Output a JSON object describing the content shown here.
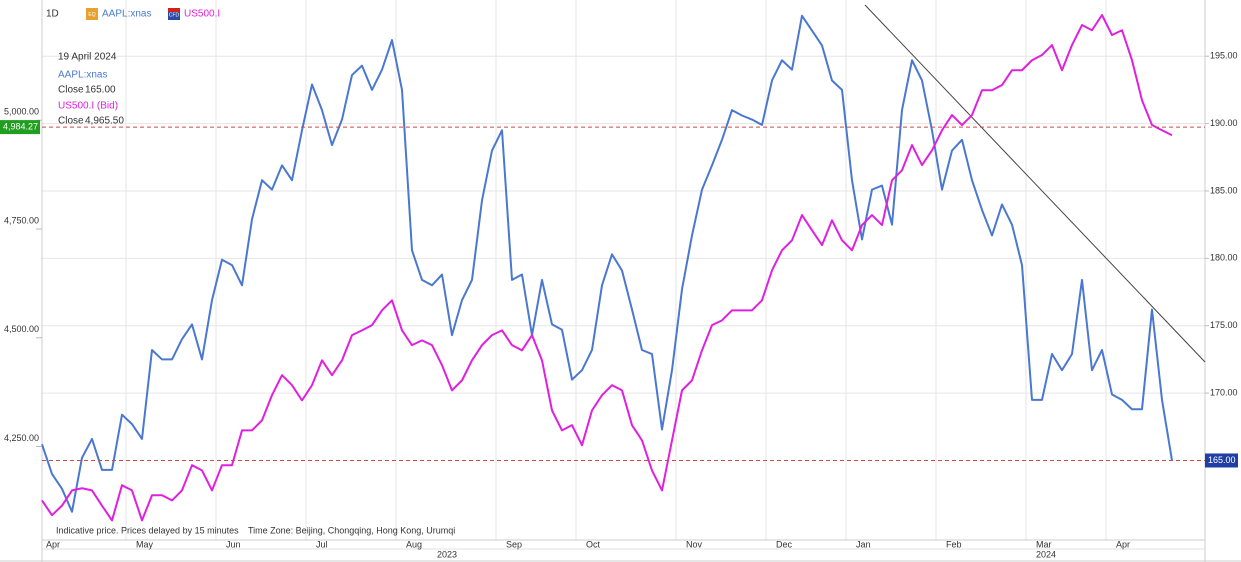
{
  "chart_data": {
    "type": "line",
    "timeframe": "1D",
    "categories": [
      "Apr",
      null,
      null,
      null,
      null,
      null,
      null,
      null,
      null,
      "May",
      null,
      null,
      null,
      null,
      null,
      null,
      null,
      null,
      "Jun",
      null,
      null,
      null,
      null,
      null,
      null,
      null,
      null,
      "Jul",
      null,
      null,
      null,
      null,
      null,
      null,
      null,
      null,
      "Aug",
      null,
      null,
      null,
      null,
      null,
      null,
      null,
      null,
      null,
      "Sep",
      null,
      null,
      null,
      null,
      null,
      null,
      null,
      "Oct",
      null,
      null,
      null,
      null,
      null,
      null,
      null,
      null,
      null,
      "Nov",
      null,
      null,
      null,
      null,
      null,
      null,
      null,
      null,
      "Dec",
      null,
      null,
      null,
      null,
      null,
      null,
      null,
      "Jan",
      null,
      null,
      null,
      null,
      null,
      null,
      null,
      null,
      "Feb",
      null,
      null,
      null,
      null,
      null,
      null,
      null,
      null,
      "Mar",
      null,
      null,
      null,
      null,
      null,
      null,
      null,
      "Apr",
      null,
      null,
      null,
      null,
      null,
      null
    ],
    "years": [
      "2023",
      "2024"
    ],
    "series": [
      {
        "name": "AAPL:xnas",
        "badge": "EQ",
        "color": "#4a78d0",
        "axis": "y2",
        "values": [
          166.2,
          164.0,
          162.9,
          161.2,
          165.2,
          166.6,
          164.3,
          164.3,
          168.4,
          167.7,
          166.6,
          173.2,
          172.5,
          172.5,
          174.0,
          175.1,
          172.5,
          176.9,
          179.9,
          179.5,
          178.0,
          182.9,
          185.8,
          185.1,
          186.9,
          185.8,
          189.5,
          192.9,
          191.0,
          188.4,
          190.3,
          193.6,
          194.3,
          192.5,
          194.0,
          196.2,
          192.5,
          180.6,
          178.4,
          178.0,
          178.8,
          174.3,
          176.9,
          178.4,
          184.3,
          188.0,
          189.5,
          178.4,
          178.8,
          174.3,
          178.4,
          175.1,
          174.7,
          171.0,
          171.7,
          173.2,
          178.0,
          180.3,
          179.1,
          176.2,
          173.2,
          172.9,
          167.3,
          171.7,
          177.7,
          181.7,
          185.1,
          186.9,
          188.8,
          191.0,
          190.6,
          190.3,
          189.9,
          193.2,
          194.7,
          194.0,
          198.0,
          196.9,
          195.8,
          193.2,
          192.5,
          185.8,
          181.4,
          185.1,
          185.4,
          182.5,
          191.0,
          194.7,
          193.2,
          189.5,
          185.1,
          188.0,
          188.8,
          185.8,
          183.6,
          181.7,
          184.0,
          182.5,
          179.5,
          169.5,
          169.5,
          172.9,
          171.7,
          172.9,
          178.4,
          171.7,
          173.2,
          169.9,
          169.5,
          168.8,
          168.8,
          176.2,
          169.5,
          165
        ]
      },
      {
        "name": "US500.I",
        "badge": "CFD",
        "color": "#e020e0",
        "values": [
          4126,
          4092,
          4114,
          4149,
          4154,
          4149,
          4114,
          4080,
          4161,
          4149,
          4080,
          4138,
          4138,
          4126,
          4149,
          4207,
          4195,
          4149,
          4207,
          4207,
          4287,
          4287,
          4310,
          4368,
          4414,
          4391,
          4356,
          4391,
          4448,
          4414,
          4448,
          4506,
          4517,
          4529,
          4563,
          4586,
          4517,
          4483,
          4494,
          4483,
          4437,
          4379,
          4402,
          4448,
          4483,
          4506,
          4517,
          4483,
          4471,
          4506,
          4448,
          4333,
          4287,
          4299,
          4253,
          4333,
          4368,
          4391,
          4379,
          4299,
          4264,
          4195,
          4149,
          4264,
          4379,
          4402,
          4471,
          4529,
          4540,
          4563,
          4563,
          4563,
          4586,
          4655,
          4701,
          4724,
          4782,
          4747,
          4713,
          4770,
          4724,
          4701,
          4759,
          4782,
          4759,
          4862,
          4885,
          4943,
          4897,
          4931,
          4977,
          5012,
          4989,
          5012,
          5069,
          5069,
          5081,
          5115,
          5115,
          5138,
          5150,
          5173,
          5115,
          5173,
          5219,
          5207,
          5242,
          5196,
          5207,
          5138,
          5046,
          4989,
          4977,
          4965.5
        ]
      }
    ],
    "ylim": [
      4035,
      5265
    ],
    "yticks": [
      {
        "value": 4250,
        "label": "4,250.00"
      },
      {
        "value": 4500,
        "label": "4,500.00"
      },
      {
        "value": 4750,
        "label": "4,750.00"
      },
      {
        "value": 5000,
        "label": "5,000.00"
      }
    ],
    "y2lim": [
      159.1,
      198.8
    ],
    "y2ticks": [
      {
        "value": 170,
        "label": "170.00"
      },
      {
        "value": 175,
        "label": "175.00"
      },
      {
        "value": 180,
        "label": "180.00"
      },
      {
        "value": 185,
        "label": "185.00"
      },
      {
        "value": 190,
        "label": "190.00"
      },
      {
        "value": 195,
        "label": "195.00"
      }
    ],
    "markers": [
      {
        "axis": "y",
        "value": 4984.27,
        "label": "4,984.27",
        "color": "#1f9e1f"
      },
      {
        "axis": "y2",
        "value": 165,
        "label": "165.00",
        "color": "#1e3fa6"
      }
    ],
    "grid": true,
    "tooltip": {
      "date": "19 April 2024",
      "entries": [
        {
          "name": "AAPL:xnas",
          "label": "Close",
          "value": "165.00"
        },
        {
          "name": "US500.I (Bid)",
          "label": "Close",
          "value": "4,965.50"
        }
      ]
    },
    "notice": "Indicative price. Prices delayed by 15 minutes",
    "timezone": "Time Zone: Beijing, Chongqing, Hong Kong, Urumqi"
  }
}
